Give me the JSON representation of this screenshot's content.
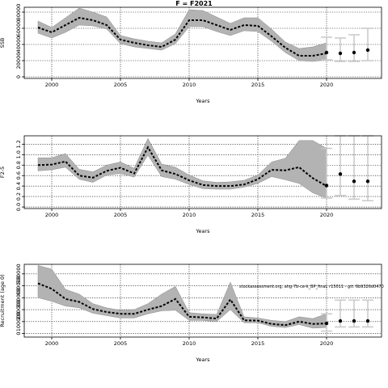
{
  "title": "F = F2021",
  "chart_data": [
    {
      "type": "line",
      "xlabel": "Years",
      "ylabel": "SSB",
      "xlim": [
        1998.0,
        2024.0
      ],
      "ylim": [
        -2000,
        86000
      ],
      "x_ticks": [
        2000,
        2005,
        2010,
        2015,
        2020
      ],
      "y_ticks": [
        0,
        20000,
        40000,
        60000,
        80000
      ],
      "y_tick_labels": [
        "0",
        "20000",
        "40000",
        "60000",
        "80000"
      ],
      "grid": true,
      "series": [
        {
          "x": [
            1999,
            2000,
            2001,
            2002,
            2003,
            2004,
            2005,
            2006,
            2007,
            2008,
            2009,
            2010,
            2011,
            2012,
            2013,
            2014,
            2015,
            2016,
            2017,
            2018,
            2019,
            2020
          ],
          "median": [
            61000,
            55000,
            64000,
            73000,
            70000,
            64000,
            46000,
            42000,
            39000,
            37000,
            46000,
            70000,
            70000,
            64000,
            58000,
            64000,
            63000,
            50000,
            36000,
            26000,
            26000,
            29000
          ],
          "lower": [
            54000,
            48000,
            55000,
            64000,
            63000,
            59000,
            41000,
            37000,
            35000,
            33000,
            41000,
            62000,
            62000,
            56000,
            51000,
            57000,
            56000,
            44000,
            30000,
            20000,
            19000,
            21000
          ],
          "upper": [
            69000,
            61000,
            73000,
            85000,
            80000,
            74000,
            51000,
            47000,
            44000,
            42000,
            53000,
            83000,
            82000,
            74000,
            66000,
            73000,
            73000,
            59000,
            43000,
            35000,
            37000,
            42000
          ]
        }
      ],
      "projections": [
        {
          "x": 2020,
          "value": 30000,
          "lower": 21000,
          "upper": 49000
        },
        {
          "x": 2021,
          "value": 29000,
          "lower": 19000,
          "upper": 48000
        },
        {
          "x": 2022,
          "value": 30000,
          "lower": 19000,
          "upper": 52000
        },
        {
          "x": 2023,
          "value": 33000,
          "lower": 20000,
          "upper": 60000
        }
      ]
    },
    {
      "type": "line",
      "xlabel": "Years",
      "ylabel": "F2-5",
      "xlim": [
        1998.0,
        2024.0
      ],
      "ylim": [
        -0.03,
        1.36
      ],
      "x_ticks": [
        2000,
        2005,
        2010,
        2015,
        2020
      ],
      "y_ticks": [
        0.0,
        0.2,
        0.4,
        0.6,
        0.8,
        1.0,
        1.2
      ],
      "y_tick_labels": [
        "0.0",
        "0.2",
        "0.4",
        "0.6",
        "0.8",
        "1.0",
        "1.2"
      ],
      "grid": true,
      "series": [
        {
          "x": [
            1999,
            2000,
            2001,
            2002,
            2003,
            2004,
            2005,
            2006,
            2007,
            2008,
            2009,
            2010,
            2011,
            2012,
            2013,
            2014,
            2015,
            2016,
            2017,
            2018,
            2019,
            2020
          ],
          "median": [
            0.8,
            0.81,
            0.87,
            0.6,
            0.56,
            0.69,
            0.75,
            0.64,
            1.14,
            0.7,
            0.63,
            0.51,
            0.42,
            0.4,
            0.4,
            0.43,
            0.53,
            0.71,
            0.7,
            0.76,
            0.55,
            0.4
          ],
          "lower": [
            0.69,
            0.71,
            0.76,
            0.53,
            0.47,
            0.61,
            0.64,
            0.57,
            0.99,
            0.58,
            0.53,
            0.43,
            0.35,
            0.34,
            0.34,
            0.38,
            0.45,
            0.58,
            0.52,
            0.45,
            0.27,
            0.17
          ],
          "upper": [
            0.94,
            0.94,
            1.02,
            0.72,
            0.67,
            0.8,
            0.86,
            0.74,
            1.31,
            0.82,
            0.76,
            0.61,
            0.5,
            0.47,
            0.48,
            0.51,
            0.61,
            0.86,
            0.93,
            1.27,
            1.27,
            1.12
          ]
        }
      ],
      "projections": [
        {
          "x": 2020,
          "value": 0.41,
          "lower": 0.17,
          "upper": 1.12
        },
        {
          "x": 2021,
          "value": 0.63,
          "lower": 0.22,
          "upper": 1.37
        },
        {
          "x": 2022,
          "value": 0.49,
          "lower": 0.15,
          "upper": 1.37
        },
        {
          "x": 2023,
          "value": 0.49,
          "lower": 0.12,
          "upper": 1.37
        }
      ]
    },
    {
      "type": "line",
      "xlabel": "Years",
      "ylabel": "Recruitment (age 0)",
      "xlim": [
        1998.0,
        2024.0
      ],
      "ylim": [
        -30000,
        580000
      ],
      "x_ticks": [
        2000,
        2005,
        2010,
        2015,
        2020
      ],
      "y_ticks": [
        0,
        100000,
        200000,
        300000,
        400000,
        500000
      ],
      "y_tick_labels": [
        "0",
        "100000",
        "200000",
        "300000",
        "400000",
        "500000"
      ],
      "grid": true,
      "series": [
        {
          "x": [
            1999,
            2000,
            2001,
            2002,
            2003,
            2004,
            2005,
            2006,
            2007,
            2008,
            2009,
            2010,
            2011,
            2012,
            2013,
            2014,
            2015,
            2016,
            2017,
            2018,
            2019,
            2020
          ],
          "median": [
            420000,
            375000,
            290000,
            265000,
            205000,
            180000,
            165000,
            165000,
            200000,
            230000,
            290000,
            140000,
            135000,
            125000,
            285000,
            110000,
            108000,
            80000,
            70000,
            100000,
            80000,
            85000
          ],
          "lower": [
            300000,
            270000,
            230000,
            215000,
            170000,
            150000,
            130000,
            130000,
            165000,
            190000,
            195000,
            110000,
            110000,
            100000,
            200000,
            90000,
            90000,
            60000,
            50000,
            75000,
            45000,
            50000
          ],
          "upper": [
            570000,
            540000,
            370000,
            330000,
            250000,
            215000,
            195000,
            200000,
            250000,
            330000,
            395000,
            175000,
            165000,
            160000,
            430000,
            140000,
            130000,
            110000,
            100000,
            140000,
            125000,
            165000
          ]
        }
      ],
      "projections": [
        {
          "x": 2020,
          "value": 85000,
          "lower": 20000,
          "upper": 165000
        },
        {
          "x": 2021,
          "value": 105000,
          "lower": 55000,
          "upper": 280000
        },
        {
          "x": 2022,
          "value": 105000,
          "lower": 55000,
          "upper": 280000
        },
        {
          "x": 2023,
          "value": 105000,
          "lower": 55000,
          "upper": 280000
        }
      ]
    }
  ],
  "annotation": "stockassessment.org, ahg-7b-ce-k_BP_final, r15011 - git: 6b9326d0470"
}
